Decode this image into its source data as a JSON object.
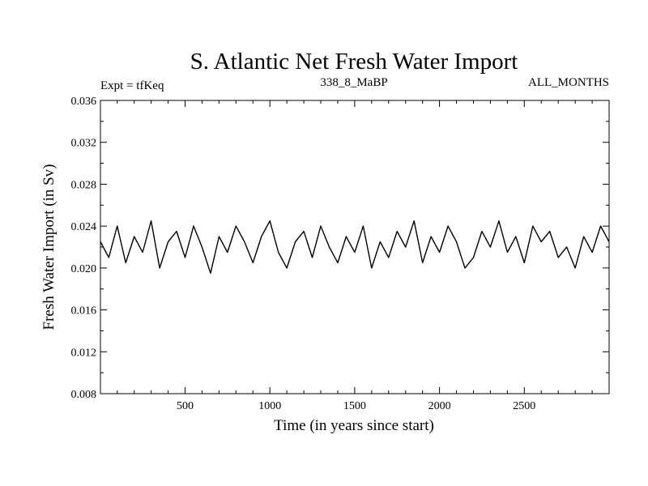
{
  "chart_data": {
    "type": "line",
    "title": "S. Atlantic Net Fresh Water Import",
    "subtitles": {
      "left": "Expt = tfKeq",
      "center": "338_8_MaBP",
      "right": "ALL_MONTHS"
    },
    "xlabel": "Time (in years since start)",
    "ylabel": "Fresh Water Import (in Sv)",
    "xlim": [
      1,
      3000
    ],
    "ylim": [
      0.008,
      0.036
    ],
    "x_ticks": [
      500,
      1000,
      1500,
      2000,
      2500
    ],
    "y_ticks": [
      "0.008",
      "0.012",
      "0.016",
      "0.020",
      "0.024",
      "0.028",
      "0.032",
      "0.036"
    ],
    "grid": false,
    "series": [
      {
        "color": "#000000",
        "x": [
          1,
          50,
          100,
          150,
          200,
          250,
          300,
          350,
          400,
          450,
          500,
          550,
          600,
          650,
          700,
          750,
          800,
          850,
          900,
          950,
          1000,
          1050,
          1100,
          1150,
          1200,
          1250,
          1300,
          1350,
          1400,
          1450,
          1500,
          1550,
          1600,
          1650,
          1700,
          1750,
          1800,
          1850,
          1900,
          1950,
          2000,
          2050,
          2100,
          2150,
          2200,
          2250,
          2300,
          2350,
          2400,
          2450,
          2500,
          2550,
          2600,
          2650,
          2700,
          2750,
          2800,
          2850,
          2900,
          2950,
          3000
        ],
        "values": [
          0.0225,
          0.021,
          0.024,
          0.0205,
          0.023,
          0.0215,
          0.0245,
          0.02,
          0.0225,
          0.0235,
          0.021,
          0.024,
          0.022,
          0.0195,
          0.023,
          0.0215,
          0.024,
          0.0225,
          0.0205,
          0.023,
          0.0245,
          0.0215,
          0.02,
          0.0225,
          0.0235,
          0.021,
          0.024,
          0.022,
          0.0205,
          0.023,
          0.0215,
          0.024,
          0.02,
          0.0225,
          0.021,
          0.0235,
          0.022,
          0.0245,
          0.0205,
          0.023,
          0.0215,
          0.024,
          0.0225,
          0.02,
          0.021,
          0.0235,
          0.022,
          0.0245,
          0.0215,
          0.023,
          0.0205,
          0.024,
          0.0225,
          0.0235,
          0.021,
          0.022,
          0.02,
          0.023,
          0.0215,
          0.024,
          0.0225
        ]
      }
    ]
  }
}
